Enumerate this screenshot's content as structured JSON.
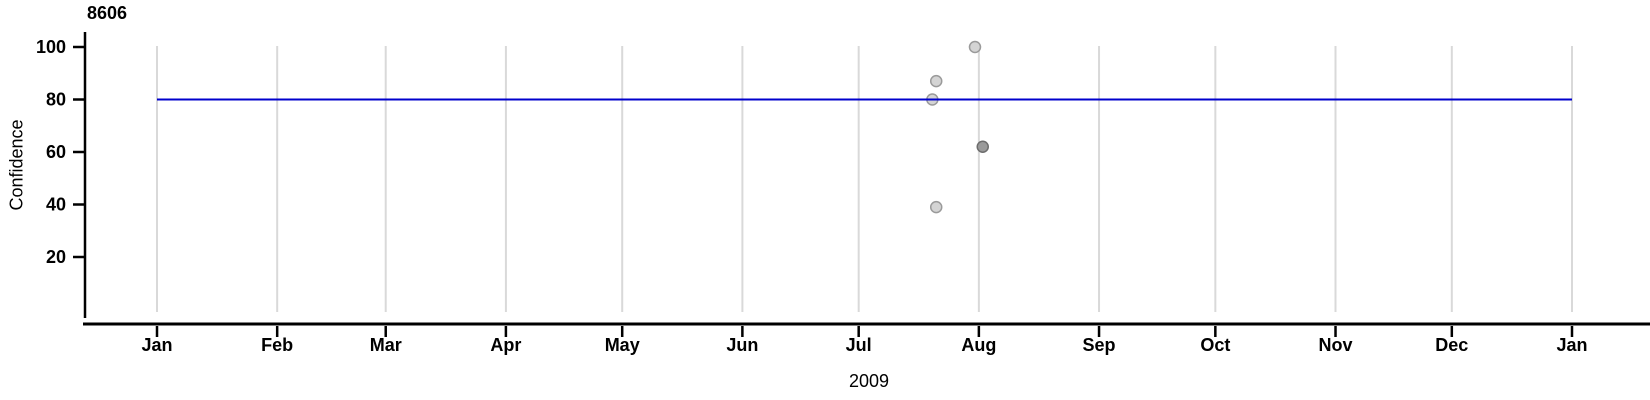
{
  "chart_data": {
    "type": "scatter",
    "title": "8606",
    "xlabel": "2009",
    "ylabel": "Confidence",
    "x_axis": {
      "tick_labels": [
        "Jan",
        "Feb",
        "Mar",
        "Apr",
        "May",
        "Jun",
        "Jul",
        "Aug",
        "Sep",
        "Oct",
        "Nov",
        "Dec",
        "Jan"
      ],
      "tick_days_from_jan1": [
        0,
        31,
        59,
        90,
        120,
        151,
        181,
        212,
        243,
        273,
        304,
        334,
        365
      ],
      "year": "2009",
      "grid": true
    },
    "y_axis": {
      "tick_labels": [
        "20",
        "40",
        "60",
        "80",
        "100"
      ],
      "tick_values": [
        20,
        40,
        60,
        80,
        100
      ],
      "range": [
        0,
        105
      ]
    },
    "reference_line": {
      "value": 80,
      "color": "#0000cc"
    },
    "points": [
      {
        "date": "2009-07-20",
        "day_of_year": 200,
        "value": 80,
        "shade": "light"
      },
      {
        "date": "2009-07-21",
        "day_of_year": 201,
        "value": 87,
        "shade": "light"
      },
      {
        "date": "2009-07-21",
        "day_of_year": 201,
        "value": 39,
        "shade": "light"
      },
      {
        "date": "2009-07-31",
        "day_of_year": 211,
        "value": 100,
        "shade": "light"
      },
      {
        "date": "2009-08-02",
        "day_of_year": 213,
        "value": 62,
        "shade": "dark"
      }
    ],
    "point_colors": {
      "light": {
        "fill": "#d4d4d4",
        "stroke": "#9a9a9a"
      },
      "dark": {
        "fill": "#9a9a9a",
        "stroke": "#6d6d6d"
      }
    },
    "colors": {
      "grid": "#d9d9d9",
      "axis": "#000000",
      "reference_line": "#0000cc"
    },
    "legend": null
  }
}
